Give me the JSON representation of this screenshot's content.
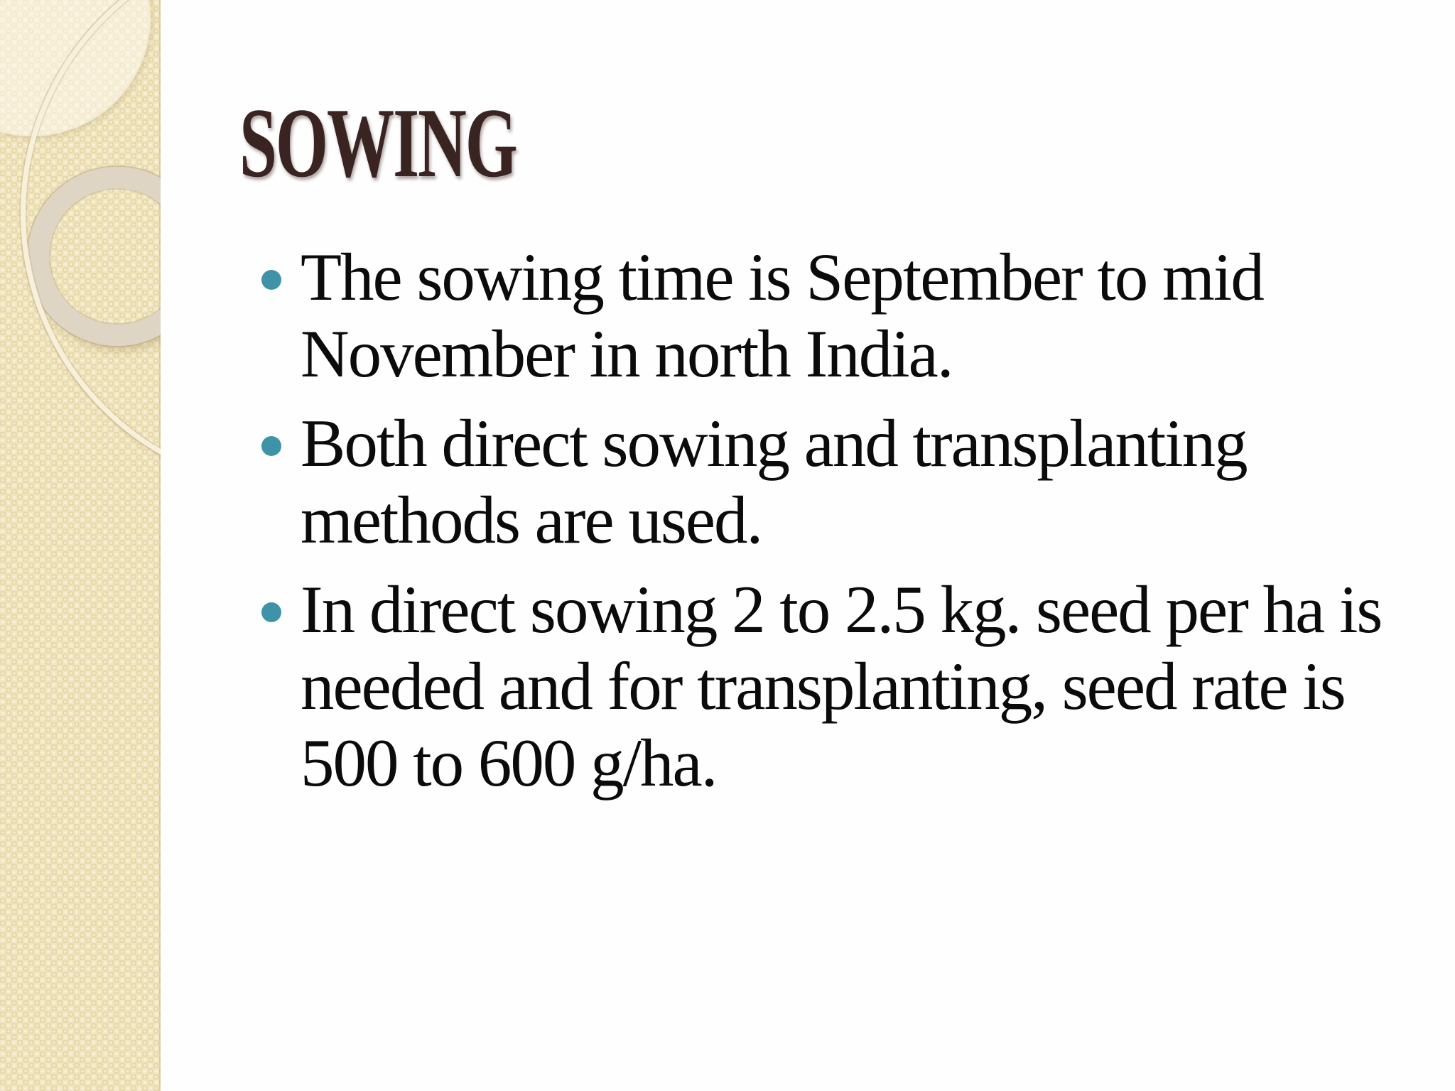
{
  "slide": {
    "title": "SOWING",
    "bullets": [
      {
        "lines": [
          "The sowing time is September to mid",
          "November in north India."
        ]
      },
      {
        "lines": [
          "Both direct sowing and transplanting",
          "methods are used."
        ]
      },
      {
        "lines": [
          "In direct sowing 2 to 2.5 kg. seed per ha is",
          "needed and for transplanting, seed rate is",
          "500 to 600 g/ha."
        ]
      }
    ],
    "marker_icon": "filled-circle",
    "sidebar_ornaments": [
      "corner-glow",
      "thick-ring",
      "thin-circle-outline"
    ],
    "colors": {
      "title_color": "#3a2422",
      "body_color": "#0b0b0b",
      "marker_color": "#3e93a8",
      "sidebar_base": "#eee1b8",
      "pattern_light": "#f2e7c3",
      "pattern_dark": "#e9daab",
      "ring_color": "#ded5c4",
      "line_color": "#f7f0dc",
      "bg_color": "#fefefe"
    }
  }
}
